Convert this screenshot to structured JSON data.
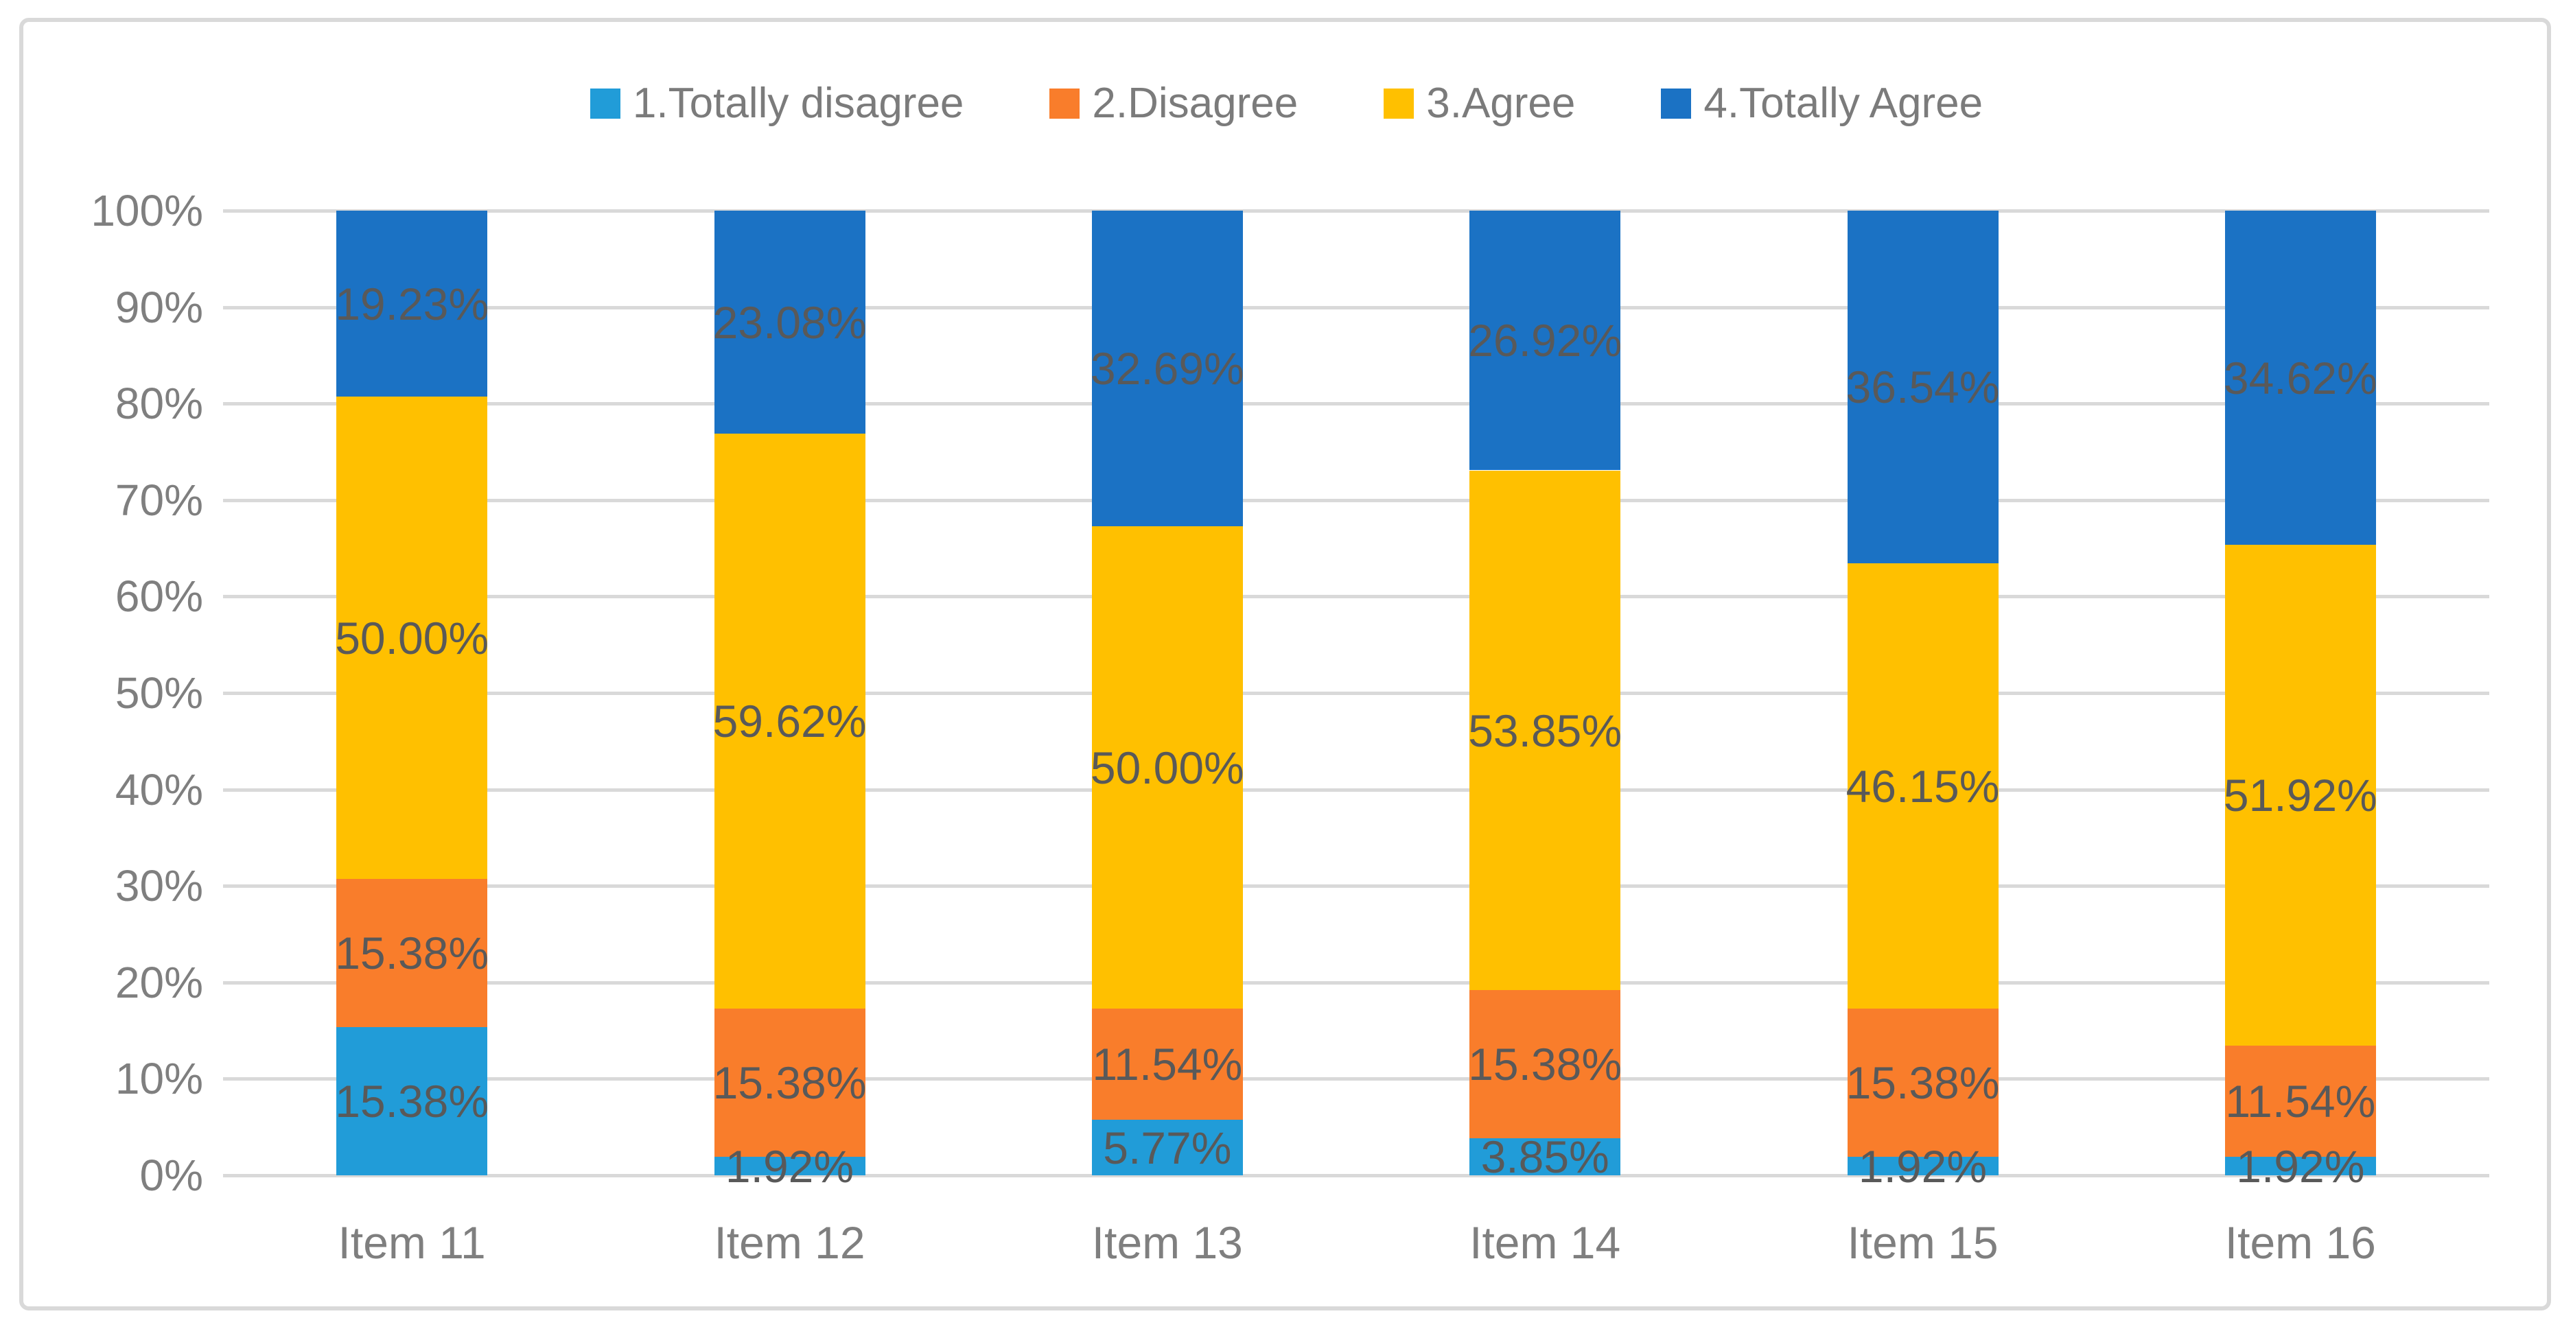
{
  "chart_data": {
    "type": "bar",
    "stacked": true,
    "percent_stacked": true,
    "title": "",
    "xlabel": "",
    "ylabel": "",
    "categories": [
      "Item 11",
      "Item 12",
      "Item 13",
      "Item 14",
      "Item 15",
      "Item 16"
    ],
    "series": [
      {
        "name": "1.Totally disagree",
        "color": "#219CD8",
        "values": [
          15.38,
          1.92,
          5.77,
          3.85,
          1.92,
          1.92
        ],
        "labels": [
          "15.38%",
          "1.92%",
          "5.77%",
          "3.85%",
          "1.92%",
          "1.92%"
        ]
      },
      {
        "name": "2.Disagree",
        "color": "#F97D2B",
        "values": [
          15.38,
          15.38,
          11.54,
          15.38,
          15.38,
          11.54
        ],
        "labels": [
          "15.38%",
          "15.38%",
          "11.54%",
          "15.38%",
          "15.38%",
          "11.54%"
        ]
      },
      {
        "name": "3.Agree",
        "color": "#FFC000",
        "values": [
          50.0,
          59.62,
          50.0,
          53.85,
          46.15,
          51.92
        ],
        "labels": [
          "50.00%",
          "59.62%",
          "50.00%",
          "53.85%",
          "46.15%",
          "51.92%"
        ]
      },
      {
        "name": "4.Totally Agree",
        "color": "#1B72C4",
        "values": [
          19.23,
          23.08,
          32.69,
          26.92,
          36.54,
          34.62
        ],
        "labels": [
          "19.23%",
          "23.08%",
          "32.69%",
          "26.92%",
          "36.54%",
          "34.62%"
        ]
      }
    ],
    "y_axis": {
      "min": 0,
      "max": 100,
      "tick_step": 10,
      "ticks": [
        "100%",
        "90%",
        "80%",
        "70%",
        "60%",
        "50%",
        "40%",
        "30%",
        "20%",
        "10%",
        "0%"
      ],
      "grid": true
    },
    "legend_position": "top",
    "colors": {
      "background": "#FFFFFF",
      "frame_border": "#D9D9D9",
      "gridline": "#D9D9D9",
      "axis_text": "#7F7F7F",
      "legend_text": "#7B7B7B",
      "data_label_text": "#595959"
    }
  }
}
